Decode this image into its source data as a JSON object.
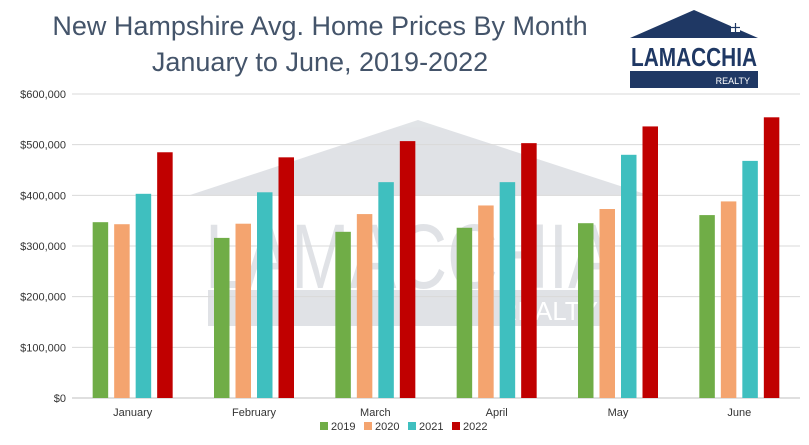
{
  "chart_data": {
    "type": "bar",
    "title": "New Hampshire Avg. Home Prices By Month",
    "subtitle": "January to June, 2019-2022",
    "categories": [
      "January",
      "February",
      "March",
      "April",
      "May",
      "June"
    ],
    "series": [
      {
        "name": "2019",
        "color": "#70ad47",
        "values": [
          347000,
          316000,
          328000,
          336000,
          345000,
          361000
        ]
      },
      {
        "name": "2020",
        "color": "#f4a46f",
        "values": [
          343000,
          344000,
          363000,
          380000,
          373000,
          388000
        ]
      },
      {
        "name": "2021",
        "color": "#3fbfbf",
        "values": [
          403000,
          406000,
          426000,
          426000,
          480000,
          468000
        ]
      },
      {
        "name": "2022",
        "color": "#c00000",
        "values": [
          485000,
          475000,
          507000,
          503000,
          536000,
          554000
        ]
      }
    ],
    "yticks": [
      "$0",
      "$100,000",
      "$200,000",
      "$300,000",
      "$400,000",
      "$500,000",
      "$600,000"
    ],
    "ylim": [
      0,
      600000
    ],
    "grid": true,
    "legend_position": "bottom"
  },
  "logo": {
    "name": "LAMACCHIA",
    "sub": "REALTY",
    "color": "#1f3864"
  },
  "watermark": {
    "name": "LAMACCHIA",
    "sub": "REALTY"
  }
}
